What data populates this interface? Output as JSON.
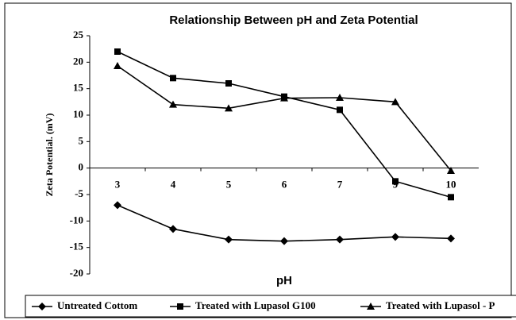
{
  "chart_data": {
    "type": "line",
    "title": "Relationship Between pH and Zeta Potential",
    "x_label": "pH",
    "y_label": "Zeta Potential. (mV)",
    "categories": [
      "3",
      "4",
      "5",
      "6",
      "7",
      "9",
      "10"
    ],
    "series": [
      {
        "name": "Untreated Cottom",
        "color": "#000000",
        "marker": "diamond",
        "values": [
          -7,
          -11.5,
          -13.5,
          -13.8,
          -13.5,
          -13,
          -13.3
        ]
      },
      {
        "name": "Treated with Lupasol G100",
        "color": "#000000",
        "marker": "square",
        "values": [
          22,
          17,
          16,
          13.5,
          11,
          -2.5,
          -5.5
        ]
      },
      {
        "name": "Treated with Lupasol - P",
        "color": "#000000",
        "marker": "triangle",
        "values": [
          19.3,
          12,
          11.3,
          13.2,
          13.3,
          12.5,
          -0.5
        ]
      }
    ],
    "ylim": [
      -20,
      25
    ],
    "yticks": [
      -20,
      -15,
      -10,
      -5,
      0,
      5,
      10,
      15,
      20,
      25
    ],
    "grid": false,
    "legend": "bottom"
  }
}
